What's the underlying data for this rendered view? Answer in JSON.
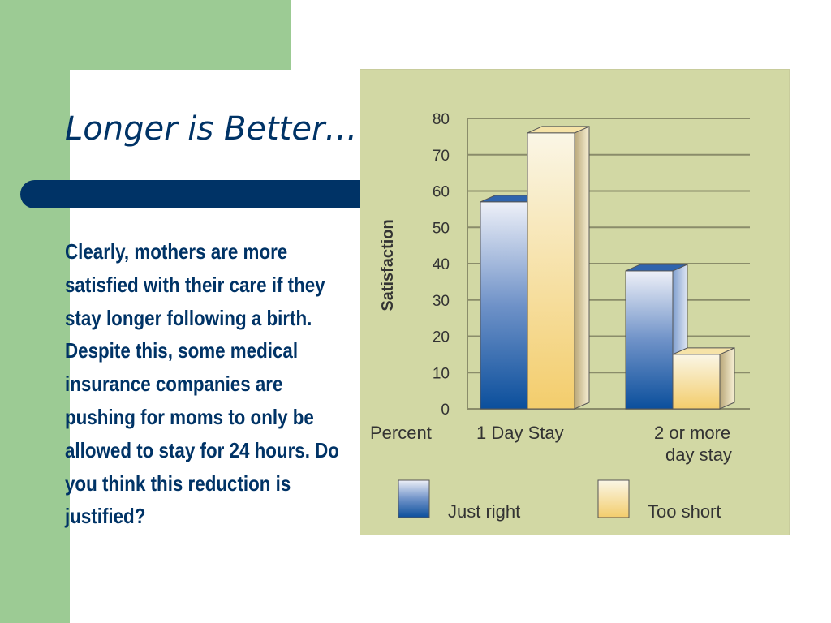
{
  "slide": {
    "title": "Longer is Better…",
    "body": "Clearly, mothers are more satisfied with their care if they stay longer following a birth. Despite this, some medical insurance companies are pushing for moms to only be allowed to stay for 24 hours. Do you think this reduction is justified?",
    "colors": {
      "accent_green": "#9ccb94",
      "navy": "#003366",
      "chart_bg": "#d2d8a4"
    }
  },
  "chart_data": {
    "type": "bar",
    "style": "3d-grouped",
    "ylabel": "Satisfaction",
    "xlabel": "Percent",
    "categories": [
      "1 Day Stay",
      "2 or more day stay"
    ],
    "category_lines": [
      [
        "1 Day Stay"
      ],
      [
        "2 or more",
        "day stay"
      ]
    ],
    "yticks": [
      "0",
      "10",
      "20",
      "30",
      "40",
      "50",
      "60",
      "70",
      "80"
    ],
    "ylim": [
      0,
      80
    ],
    "grid": true,
    "legend_position": "bottom",
    "series": [
      {
        "name": "Just right",
        "values": [
          57,
          38
        ],
        "color": "#1f5fa8"
      },
      {
        "name": "Too short",
        "values": [
          76,
          15
        ],
        "color": "#f3d27a"
      }
    ]
  }
}
